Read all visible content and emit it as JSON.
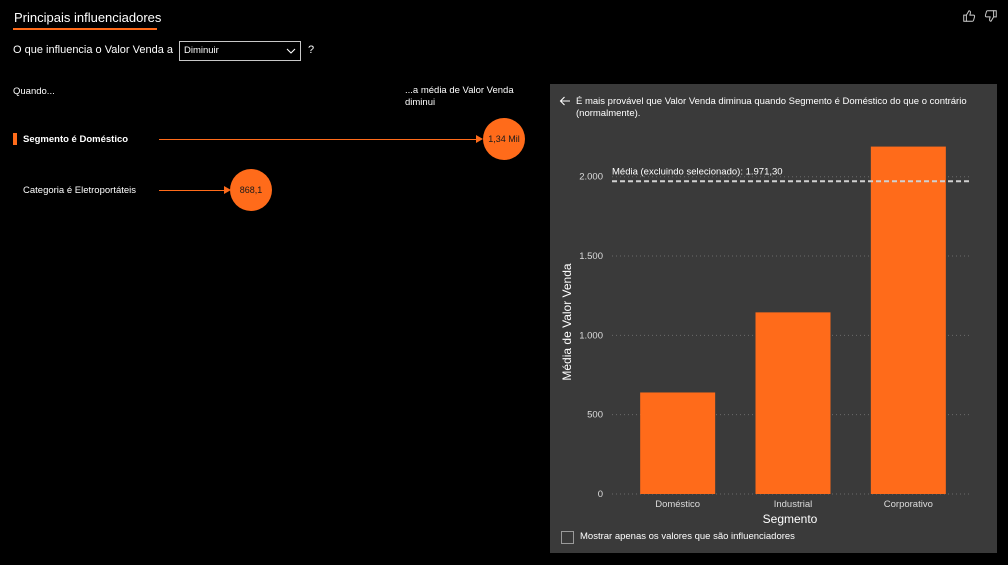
{
  "header": {
    "tab_title": "Principais influenciadores"
  },
  "feedback": {
    "like_icon": "thumbs-up-icon",
    "dislike_icon": "thumbs-down-icon"
  },
  "question": {
    "prefix": "O que influencia o Valor Venda a",
    "selected": "Diminuir",
    "suffix": "?"
  },
  "columns": {
    "when": "Quando...",
    "average": "...a média de Valor Venda diminui"
  },
  "influencers": [
    {
      "label": "Segmento é Doméstico",
      "value": "1,34 Mil",
      "selected": true
    },
    {
      "label": "Categoria é Eletroportáteis",
      "value": "868,1",
      "selected": false
    }
  ],
  "panel": {
    "description": "É mais provável que Valor Venda diminua quando Segmento é Doméstico do que o contrário (normalmente).",
    "checkbox_label": "Mostrar apenas os valores que são influenciadores"
  },
  "colors": {
    "accent": "#ff6b1a",
    "panel_bg": "#3a3a3a",
    "background": "#000000"
  },
  "chart_data": {
    "type": "bar",
    "categories": [
      "Doméstico",
      "Industrial",
      "Corporativo"
    ],
    "values": [
      640,
      1145,
      2190
    ],
    "xlabel": "Segmento",
    "ylabel": "Média de Valor Venda",
    "ylim": [
      0,
      2200
    ],
    "yticks": [
      0,
      500,
      1000,
      1500,
      2000
    ],
    "ytick_labels": [
      "0",
      "500",
      "1.000",
      "1.500",
      "2.000"
    ],
    "reference_line": {
      "label": "Média (excluindo selecionado): 1.971,30",
      "value": 1971.3
    },
    "grid": true
  }
}
